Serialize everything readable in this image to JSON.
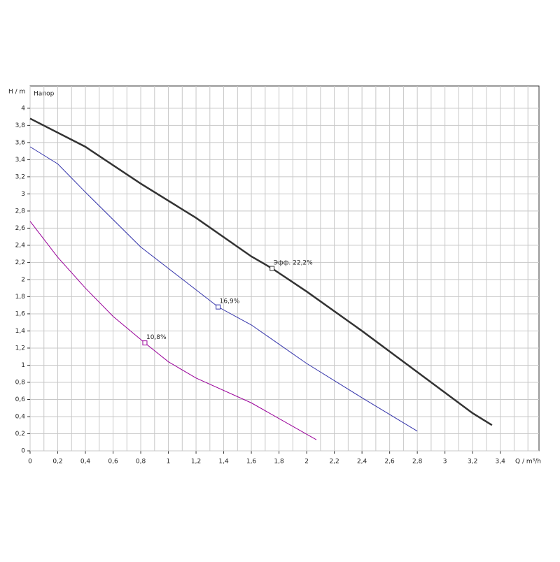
{
  "chart_data": {
    "type": "line",
    "ylabel": "H / m",
    "xlabel": "Q / m³/h",
    "annotation": "Напор",
    "xlim": [
      0,
      3.68
    ],
    "ylim": [
      0,
      4.26
    ],
    "grid": true,
    "xticks": [
      0,
      {
        "value": 0.2,
        "label": "0,2"
      },
      {
        "value": 0.4,
        "label": "0,4"
      },
      {
        "value": 0.6,
        "label": "0,6"
      },
      {
        "value": 0.8,
        "label": "0,8"
      },
      1,
      {
        "value": 1.2,
        "label": "1,2"
      },
      {
        "value": 1.4,
        "label": "1,4"
      },
      {
        "value": 1.6,
        "label": "1,6"
      },
      {
        "value": 1.8,
        "label": "1,8"
      },
      2,
      {
        "value": 2.2,
        "label": "2,2"
      },
      {
        "value": 2.4,
        "label": "2,4"
      },
      {
        "value": 2.6,
        "label": "2,6"
      },
      {
        "value": 2.8,
        "label": "2,8"
      },
      3,
      {
        "value": 3.2,
        "label": "3,2"
      },
      {
        "value": 3.4,
        "label": "3,4"
      }
    ],
    "xminorticks": [
      0.1,
      0.3,
      0.5,
      0.7,
      0.9,
      1.1,
      1.3,
      1.5,
      1.7,
      1.9,
      2.1,
      2.3,
      2.5,
      2.7,
      2.9,
      3.1,
      3.3,
      3.5,
      3.6
    ],
    "yticks": [
      0,
      {
        "value": 0.2,
        "label": "0,2"
      },
      {
        "value": 0.4,
        "label": "0,4"
      },
      {
        "value": 0.6,
        "label": "0,6"
      },
      {
        "value": 0.8,
        "label": "0,8"
      },
      1,
      {
        "value": 1.2,
        "label": "1,2"
      },
      {
        "value": 1.4,
        "label": "1,4"
      },
      {
        "value": 1.6,
        "label": "1,6"
      },
      {
        "value": 1.8,
        "label": "1,8"
      },
      2,
      {
        "value": 2.2,
        "label": "2,2"
      },
      {
        "value": 2.4,
        "label": "2,4"
      },
      {
        "value": 2.6,
        "label": "2,6"
      },
      {
        "value": 2.8,
        "label": "2,8"
      },
      3,
      {
        "value": 3.2,
        "label": "3,2"
      },
      {
        "value": 3.4,
        "label": "3,4"
      },
      {
        "value": 3.6,
        "label": "3,6"
      },
      {
        "value": 3.8,
        "label": "3,8"
      },
      4
    ],
    "series": [
      {
        "color": "#333333",
        "width": 2.5,
        "x": [
          0,
          0.4,
          0.8,
          1.2,
          1.6,
          1.75,
          2.0,
          2.4,
          2.8,
          3.2,
          3.34
        ],
        "values": [
          3.88,
          3.55,
          3.12,
          2.72,
          2.27,
          2.13,
          1.86,
          1.4,
          0.92,
          0.44,
          0.3
        ],
        "marker": {
          "x": 1.75,
          "y": 2.13,
          "label": "Эфф.  22,2%"
        }
      },
      {
        "color": "#3333aa",
        "width": 1,
        "x": [
          0,
          0.2,
          0.4,
          0.8,
          1.2,
          1.36,
          1.6,
          2.0,
          2.4,
          2.8
        ],
        "values": [
          3.55,
          3.35,
          3.02,
          2.38,
          1.88,
          1.68,
          1.47,
          1.02,
          0.62,
          0.23
        ],
        "marker": {
          "x": 1.36,
          "y": 1.68,
          "label": "16,9%"
        }
      },
      {
        "color": "#990099",
        "width": 1,
        "x": [
          0,
          0.2,
          0.4,
          0.6,
          0.83,
          1.0,
          1.2,
          1.6,
          2.07
        ],
        "values": [
          2.68,
          2.26,
          1.9,
          1.57,
          1.26,
          1.04,
          0.85,
          0.56,
          0.13
        ],
        "marker": {
          "x": 0.83,
          "y": 1.26,
          "label": "10,8%"
        }
      }
    ]
  }
}
